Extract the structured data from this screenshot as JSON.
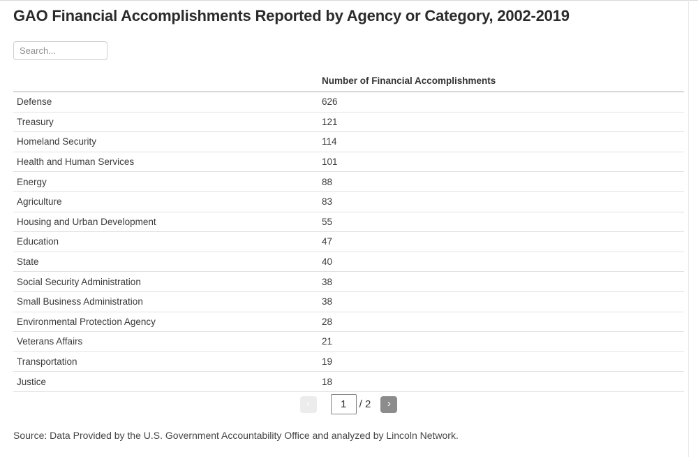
{
  "page": {
    "title": "GAO Financial Accomplishments Reported by Agency or Category, 2002-2019",
    "source_note": "Source: Data Provided by the U.S. Government Accountability Office and analyzed by Lincoln Network."
  },
  "search": {
    "placeholder": "Search..."
  },
  "table": {
    "value_header": "Number of Financial Accomplishments",
    "rows": [
      {
        "agency": "Defense",
        "value": "626"
      },
      {
        "agency": "Treasury",
        "value": "121"
      },
      {
        "agency": "Homeland Security",
        "value": "114"
      },
      {
        "agency": "Health and Human Services",
        "value": "101"
      },
      {
        "agency": "Energy",
        "value": "88"
      },
      {
        "agency": "Agriculture",
        "value": "83"
      },
      {
        "agency": "Housing and Urban Development",
        "value": "55"
      },
      {
        "agency": "Education",
        "value": "47"
      },
      {
        "agency": "State",
        "value": "40"
      },
      {
        "agency": "Social Security Administration",
        "value": "38"
      },
      {
        "agency": "Small Business Administration",
        "value": "38"
      },
      {
        "agency": "Environmental Protection Agency",
        "value": "28"
      },
      {
        "agency": "Veterans Affairs",
        "value": "21"
      },
      {
        "agency": "Transportation",
        "value": "19"
      },
      {
        "agency": "Justice",
        "value": "18"
      }
    ]
  },
  "pagination": {
    "prev_glyph": "‹",
    "next_glyph": "›",
    "current_page": "1",
    "total_label": "/ 2"
  },
  "colors": {
    "next_button": "#8c8c8c",
    "prev_button_disabled": "#ececec",
    "header_border": "#a9a9a9",
    "row_border": "#e2e2e2"
  }
}
